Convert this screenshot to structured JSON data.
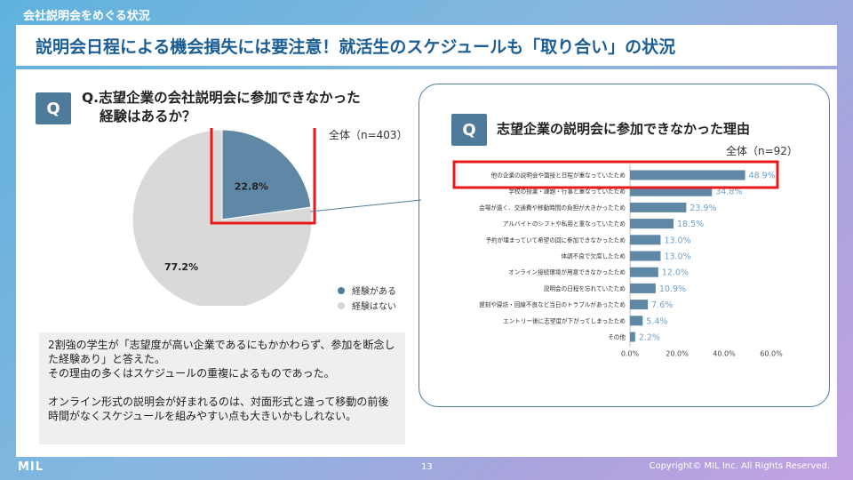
{
  "section_label": "会社説明会をめぐる状況",
  "title": "説明会日程による機会損失には要注意！就活生のスケジュールも「取り合い」の状況",
  "left": {
    "badge": "Q",
    "question_line1": "Q.志望企業の会社説明会に参加できなかった",
    "question_line2": "経験はあるか？",
    "sample_note": "全体（n=403）",
    "legend": [
      {
        "label": "経験がある",
        "color": "#4f7b9a"
      },
      {
        "label": "経験はない",
        "color": "#d9d9d9"
      }
    ]
  },
  "right": {
    "badge": "Q",
    "question": "志望企業の説明会に参加できなかった理由",
    "sample_note": "全体（n=92）"
  },
  "chart_data": [
    {
      "type": "pie",
      "categories": [
        "経験がある",
        "経験はない"
      ],
      "values": [
        22.8,
        77.2
      ],
      "labels": [
        "22.8%",
        "77.2%"
      ],
      "colors": [
        "#5f87a6",
        "#d9d9d9"
      ],
      "highlight": "経験がある",
      "legend_position": "bottom-right"
    },
    {
      "type": "bar",
      "orientation": "horizontal",
      "categories": [
        "他の企業の説明会や面接と日程が重なっていたため",
        "学校の授業・課題・行事と重なっていたため",
        "会場が遠く、交通費や移動時間の負担が大きかったため",
        "アルバイトのシフトや私用と重なっていたため",
        "予約が埋まっていて希望の回に参加できなかったため",
        "体調不良で欠席したため",
        "オンライン接続環境が用意できなかったため",
        "説明会の日程を忘れていたため",
        "遅刻や寝坊・回線不良など当日のトラブルがあったため",
        "エントリー後に志望度が下がってしまったため",
        "その他"
      ],
      "values": [
        48.9,
        34.8,
        23.9,
        18.5,
        13.0,
        13.0,
        12.0,
        10.9,
        7.6,
        5.4,
        2.2
      ],
      "labels": [
        "48.9%",
        "34.8%",
        "23.9%",
        "18.5%",
        "13.0%",
        "13.0%",
        "12.0%",
        "10.9%",
        "7.6%",
        "5.4%",
        "2.2%"
      ],
      "xlim": [
        0,
        60
      ],
      "xticks": [
        "0.0%",
        "20.0%",
        "40.0%",
        "60.0%"
      ],
      "bar_color": "#5f87a6",
      "label_color": "#6f9ecb",
      "highlight_index": 0
    }
  ],
  "summary": {
    "paragraph1": "2割強の学生が「志望度が高い企業であるにもかかわらず、参加を断念した経験あり」と答えた。",
    "paragraph2": "その理由の多くはスケジュールの重複によるものであった。",
    "paragraph3": "オンライン形式の説明会が好まれるのは、対面形式と違って移動の前後時間がなくスケジュールを組みやすい点も大きいかもしれない。"
  },
  "footer": {
    "logo": "MIL",
    "page_number": "13",
    "copyright": "Copyright© MIL Inc. All Rights Reserved."
  },
  "accent": {
    "highlight_red": "#e8191a",
    "navy": "#1b5e96"
  }
}
